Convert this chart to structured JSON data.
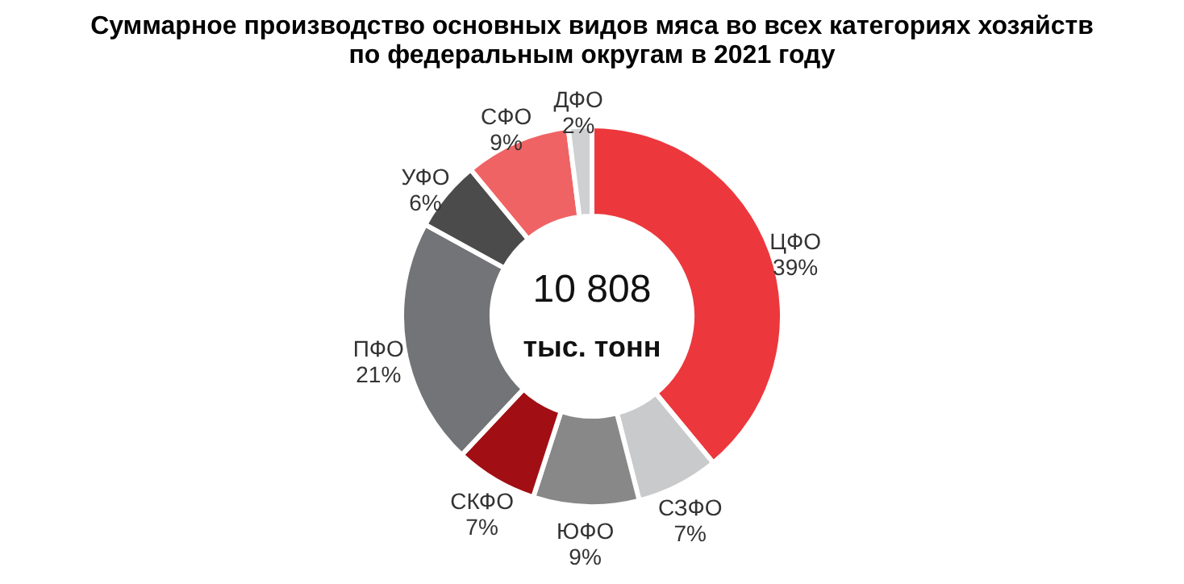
{
  "chart_data": {
    "type": "donut",
    "title": [
      "Суммарное производство основных видов мяса во всех категориях хозяйств",
      "по федеральным округам в  2021 году"
    ],
    "categories": [
      "ЦФО",
      "СЗФО",
      "ЮФО",
      "СКФО",
      "ПФО",
      "УФО",
      "СФО",
      "ДФО"
    ],
    "values": [
      39,
      7,
      9,
      7,
      21,
      6,
      9,
      2
    ],
    "value_labels": [
      "39%",
      "7%",
      "9%",
      "7%",
      "21%",
      "6%",
      "9%",
      "2%"
    ],
    "colors": [
      "#ec383c",
      "#c9cacc",
      "#888888",
      "#a10f14",
      "#727477",
      "#4b4b4b",
      "#f06364",
      "#cfd0d2"
    ],
    "annotations": [
      "10 808",
      "тыс. тонн"
    ],
    "legend": false
  }
}
